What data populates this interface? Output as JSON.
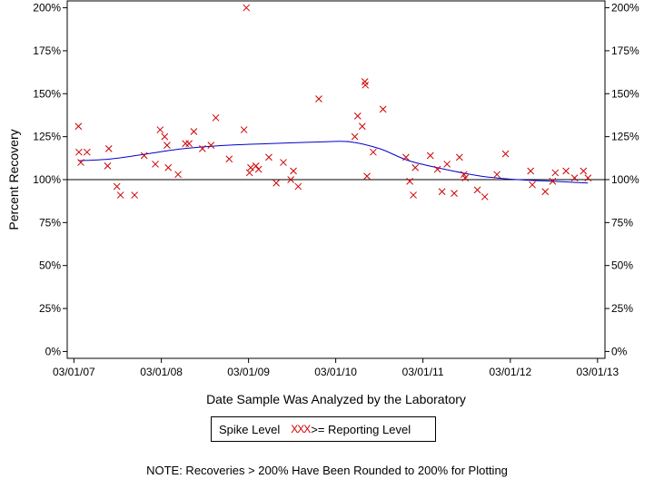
{
  "chart_data": {
    "type": "scatter",
    "xlabel": "Date Sample Was Analyzed by the Laboratory",
    "ylabel": "Percent Recovery",
    "x_tick_labels": [
      "03/01/07",
      "03/01/08",
      "03/01/09",
      "03/01/10",
      "03/01/11",
      "03/01/12",
      "03/01/13"
    ],
    "y_tick_labels": [
      "0%",
      "25%",
      "50%",
      "75%",
      "100%",
      "125%",
      "150%",
      "175%",
      "200%"
    ],
    "y_ticks": [
      0,
      25,
      50,
      75,
      100,
      125,
      150,
      175,
      200
    ],
    "xlim": [
      "2007-02-01",
      "2013-04-01"
    ],
    "ylim": [
      -4,
      204
    ],
    "reference_line": 100,
    "colors": {
      "points": "#d00000",
      "smooth": "#0000cc",
      "reference": "#000000"
    },
    "grid": false,
    "legend_placement": "bottom-center",
    "series": [
      {
        "type": "scatter",
        "marker": "x",
        "points": [
          [
            "2007-03-20",
            131
          ],
          [
            "2007-03-22",
            116
          ],
          [
            "2007-03-30",
            110
          ],
          [
            "2007-04-25",
            116
          ],
          [
            "2007-07-20",
            108
          ],
          [
            "2007-07-25",
            118
          ],
          [
            "2007-08-28",
            96
          ],
          [
            "2007-09-12",
            91
          ],
          [
            "2007-11-10",
            91
          ],
          [
            "2007-12-20",
            114
          ],
          [
            "2008-02-05",
            109
          ],
          [
            "2008-02-25",
            129
          ],
          [
            "2008-03-15",
            125
          ],
          [
            "2008-03-25",
            120
          ],
          [
            "2008-03-30",
            107
          ],
          [
            "2008-05-10",
            103
          ],
          [
            "2008-06-10",
            121
          ],
          [
            "2008-06-25",
            121
          ],
          [
            "2008-07-15",
            128
          ],
          [
            "2008-08-20",
            118
          ],
          [
            "2008-09-25",
            120
          ],
          [
            "2008-10-15",
            136
          ],
          [
            "2008-12-10",
            112
          ],
          [
            "2009-02-10",
            129
          ],
          [
            "2009-02-20",
            200
          ],
          [
            "2009-03-05",
            104
          ],
          [
            "2009-03-10",
            107
          ],
          [
            "2009-04-01",
            108
          ],
          [
            "2009-04-12",
            106
          ],
          [
            "2009-05-25",
            113
          ],
          [
            "2009-06-25",
            98
          ],
          [
            "2009-07-25",
            110
          ],
          [
            "2009-08-25",
            100
          ],
          [
            "2009-09-05",
            105
          ],
          [
            "2009-09-25",
            96
          ],
          [
            "2009-12-20",
            147
          ],
          [
            "2010-05-20",
            125
          ],
          [
            "2010-06-01",
            137
          ],
          [
            "2010-06-20",
            131
          ],
          [
            "2010-07-01",
            157
          ],
          [
            "2010-07-03",
            155
          ],
          [
            "2010-07-10",
            102
          ],
          [
            "2010-08-05",
            116
          ],
          [
            "2010-09-15",
            141
          ],
          [
            "2010-12-20",
            113
          ],
          [
            "2011-01-05",
            99
          ],
          [
            "2011-01-20",
            91
          ],
          [
            "2011-01-28",
            107
          ],
          [
            "2011-04-01",
            114
          ],
          [
            "2011-05-01",
            106
          ],
          [
            "2011-05-20",
            93
          ],
          [
            "2011-06-10",
            109
          ],
          [
            "2011-07-10",
            92
          ],
          [
            "2011-08-01",
            113
          ],
          [
            "2011-08-20",
            103
          ],
          [
            "2011-08-25",
            101
          ],
          [
            "2011-10-15",
            94
          ],
          [
            "2011-11-15",
            90
          ],
          [
            "2012-01-05",
            103
          ],
          [
            "2012-02-10",
            115
          ],
          [
            "2012-05-25",
            105
          ],
          [
            "2012-06-01",
            97
          ],
          [
            "2012-07-25",
            93
          ],
          [
            "2012-08-25",
            99
          ],
          [
            "2012-09-05",
            104
          ],
          [
            "2012-10-20",
            105
          ],
          [
            "2012-11-25",
            101
          ],
          [
            "2013-01-01",
            105
          ],
          [
            "2013-01-20",
            101
          ]
        ]
      },
      {
        "type": "line",
        "curve": "smooth",
        "points": [
          [
            "2007-03-20",
            111
          ],
          [
            "2007-08-01",
            112
          ],
          [
            "2008-01-01",
            115
          ],
          [
            "2008-06-01",
            118
          ],
          [
            "2008-12-01",
            120
          ],
          [
            "2009-06-01",
            121
          ],
          [
            "2010-01-01",
            122
          ],
          [
            "2010-05-01",
            122
          ],
          [
            "2010-09-01",
            118
          ],
          [
            "2011-01-01",
            111
          ],
          [
            "2011-06-01",
            106
          ],
          [
            "2011-11-01",
            102
          ],
          [
            "2012-04-01",
            100
          ],
          [
            "2012-09-01",
            99
          ],
          [
            "2013-01-20",
            98
          ]
        ]
      }
    ]
  },
  "legend": {
    "label": "Spike Level",
    "marker": "XXX",
    "reporting_label": ">= Reporting Level"
  },
  "note": "NOTE: Recoveries > 200% Have Been Rounded to 200% for Plotting"
}
